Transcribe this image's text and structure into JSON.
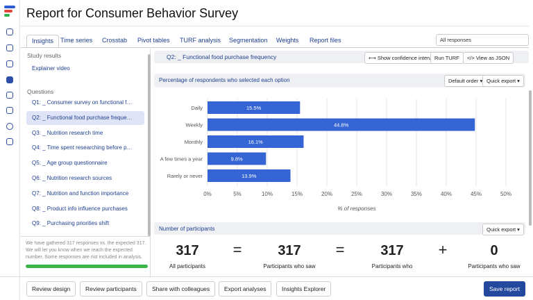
{
  "header": {
    "title": "Report for Consumer Behavior Survey"
  },
  "tabs": [
    "Insights",
    "Time series",
    "Crosstab",
    "Pivot tables",
    "TURF analysis",
    "Segmentation",
    "Weights",
    "Report files"
  ],
  "response_filter": "All responses",
  "sidebar": {
    "study_results_heading": "Study results",
    "study_results": [
      "Explainer video"
    ],
    "questions_heading": "Questions",
    "questions": [
      "Q1: _ Consumer survey on functional f…",
      "Q2: _ Functional food purchase freque…",
      "Q3: _ Nutrition research time",
      "Q4: _ Time spent researching before p…",
      "Q5: _ Age group questionnaire",
      "Q6: _ Nutrition research sources",
      "Q7: _ Nutrition and function importance",
      "Q8: _ Product info influence purchases",
      "Q9: _ Purchasing priorities shift"
    ],
    "notice": "We have gathered 317 responses vs. the expected 317. We will let you know when we reach the expected number. Some responses are not included in analysis."
  },
  "question_bar": {
    "title": "Q2: _ Functional food purchase frequency",
    "actions": [
      "⟷ Show confidence intervals",
      "Run TURF",
      "</> View as JSON"
    ]
  },
  "chart_panel": {
    "sort": "Default order ▾",
    "export": "Quick export ▾"
  },
  "chart_data": {
    "type": "bar",
    "orientation": "horizontal",
    "title": "Percentage of respondents who selected each option",
    "x_label": "% of responses",
    "categories": [
      "Daily",
      "Weekly",
      "Monthly",
      "A few times a year",
      "Rarely or never"
    ],
    "values": [
      15.5,
      44.8,
      16.1,
      9.8,
      13.9
    ],
    "value_labels": [
      "15.5%",
      "44.8%",
      "16.1%",
      "9.8%",
      "13.9%"
    ],
    "color": "#3565d4",
    "xlim": [
      0,
      50
    ],
    "xticks": [
      {
        "value": 0,
        "label": "0%"
      },
      {
        "value": 5,
        "label": "5%"
      },
      {
        "value": 10,
        "label": "10%"
      },
      {
        "value": 15,
        "label": "15%"
      },
      {
        "value": 20,
        "label": "20%"
      },
      {
        "value": 25,
        "label": "25%"
      },
      {
        "value": 30,
        "label": "30%"
      },
      {
        "value": 35,
        "label": "35%"
      },
      {
        "value": 40,
        "label": "40%"
      },
      {
        "value": 45,
        "label": "45%"
      },
      {
        "value": 50,
        "label": "50%"
      }
    ],
    "grid": true
  },
  "participants": {
    "heading": "Number of participants",
    "export": "Quick export ▾",
    "items": [
      {
        "value": 317,
        "label": "All participants"
      },
      {
        "value": 317,
        "label": "Participants who saw"
      },
      {
        "value": 317,
        "label": "Participants who"
      },
      {
        "value": 0,
        "label": "Participants who saw"
      }
    ],
    "operators": [
      "=",
      "=",
      "+"
    ]
  },
  "footer": {
    "buttons": [
      "Review design",
      "Review participants",
      "Share with colleagues",
      "Export analyses",
      "Insights Explorer"
    ],
    "save": "Save report"
  }
}
